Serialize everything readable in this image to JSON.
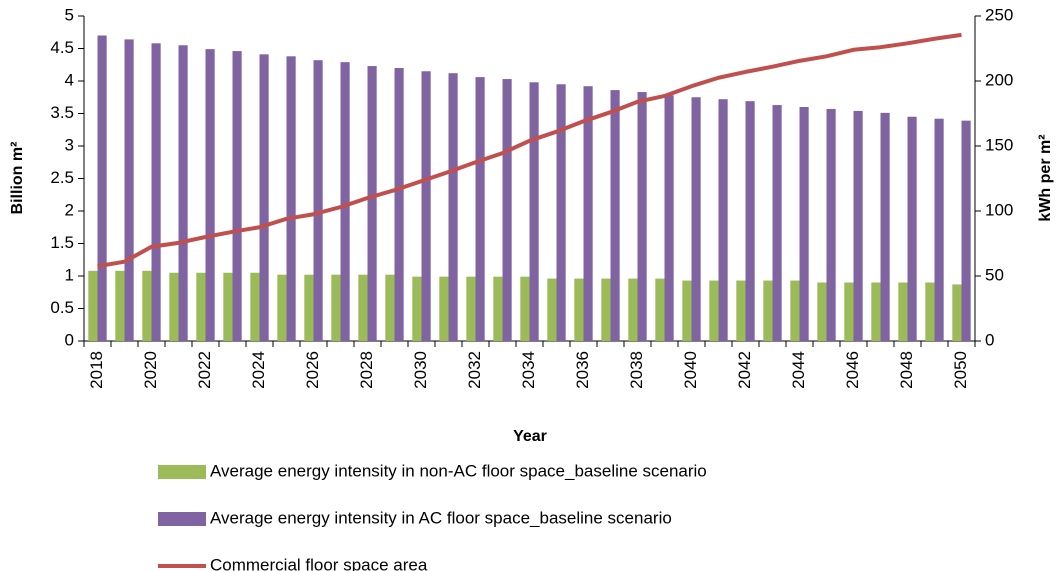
{
  "chart_data": {
    "type": "bar-line",
    "x_label": "Year",
    "y_label": "Billion m²",
    "y2_label": "kWh per m²",
    "categories": [
      "2018",
      null,
      "2020",
      null,
      "2022",
      null,
      "2024",
      null,
      "2026",
      null,
      "2028",
      null,
      "2030",
      null,
      "2032",
      null,
      "2034",
      null,
      "2036",
      null,
      "2038",
      null,
      "2040",
      null,
      "2042",
      null,
      "2044",
      null,
      "2046",
      null,
      "2048",
      null,
      "2050"
    ],
    "series": [
      {
        "name": "Average energy intensity in non-AC floor space_baseline scenario",
        "type": "bar",
        "axis": "y2",
        "color": "#9bbb59",
        "values": [
          54,
          54,
          54,
          52.5,
          52.5,
          52.5,
          52.5,
          51,
          51,
          51,
          51,
          51,
          49.5,
          49.5,
          49.5,
          49.5,
          49.5,
          48,
          48,
          48,
          48,
          48,
          46.5,
          46.5,
          46.5,
          46.5,
          46.5,
          45,
          45,
          45,
          45,
          45,
          43.5
        ]
      },
      {
        "name": "Average energy intensity in AC floor space_baseline scenario",
        "type": "bar",
        "axis": "y2",
        "color": "#8064a2",
        "values": [
          235,
          232,
          229,
          227.5,
          224.5,
          223,
          220.5,
          219,
          216,
          214.5,
          211.5,
          210,
          207.5,
          206,
          203,
          201.5,
          199,
          197.5,
          196,
          193,
          191.5,
          189,
          187.5,
          186,
          184.5,
          181.5,
          180,
          178.5,
          177,
          175.5,
          172.5,
          171,
          169.5
        ]
      },
      {
        "name": "Commercial floor space area",
        "type": "line",
        "axis": "y",
        "color": "#c0504d",
        "values": [
          1.15,
          1.22,
          1.45,
          1.51,
          1.6,
          1.68,
          1.75,
          1.88,
          1.95,
          2.06,
          2.2,
          2.32,
          2.46,
          2.6,
          2.75,
          2.89,
          3.08,
          3.22,
          3.38,
          3.52,
          3.68,
          3.77,
          3.92,
          4.05,
          4.14,
          4.22,
          4.31,
          4.38,
          4.48,
          4.52,
          4.58,
          4.65,
          4.71
        ]
      }
    ],
    "ylim": [
      0,
      5
    ],
    "yticks": [
      0,
      0.5,
      1,
      1.5,
      2,
      2.5,
      3,
      3.5,
      4,
      4.5,
      5
    ],
    "y2lim": [
      0,
      250
    ],
    "y2ticks": [
      0,
      50,
      100,
      150,
      200,
      250
    ]
  }
}
